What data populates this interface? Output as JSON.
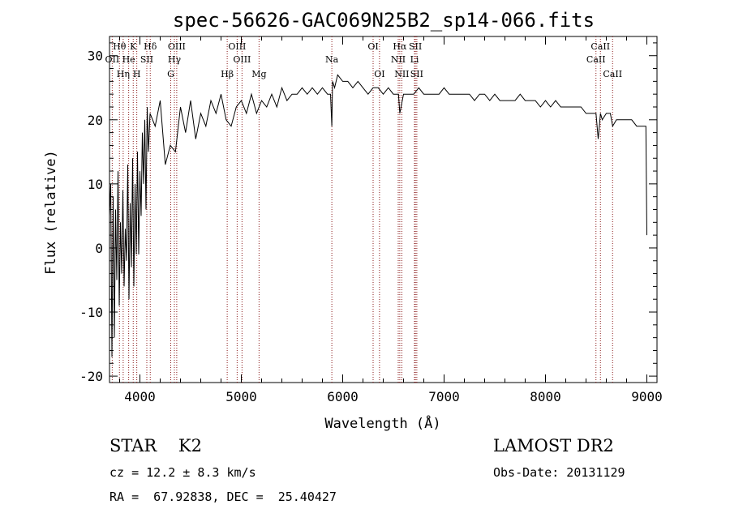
{
  "chart_data": {
    "type": "line",
    "title": "spec-56626-GAC069N25B2_sp14-066.fits",
    "xlabel": "Wavelength (Å)",
    "ylabel": "Flux (relative)",
    "xlim": [
      3700,
      9100
    ],
    "ylim": [
      -21,
      33
    ],
    "xticks": [
      4000,
      5000,
      6000,
      7000,
      8000,
      9000
    ],
    "yticks": [
      -20,
      -10,
      0,
      10,
      20,
      30
    ],
    "series": [
      {
        "x": [
          3700,
          3712,
          3724,
          3736,
          3748,
          3760,
          3772,
          3784,
          3796,
          3808,
          3820,
          3832,
          3844,
          3856,
          3868,
          3880,
          3892,
          3904,
          3916,
          3928,
          3940,
          3952,
          3964,
          3976,
          3988,
          4000,
          4012,
          4024,
          4036,
          4048,
          4060,
          4072,
          4084,
          4100,
          4150,
          4200,
          4250,
          4300,
          4350,
          4400,
          4450,
          4500,
          4550,
          4600,
          4650,
          4700,
          4750,
          4800,
          4850,
          4900,
          4950,
          5000,
          5050,
          5100,
          5150,
          5200,
          5250,
          5300,
          5350,
          5400,
          5450,
          5500,
          5550,
          5600,
          5650,
          5700,
          5750,
          5800,
          5850,
          5880,
          5893,
          5900,
          5920,
          5950,
          6000,
          6050,
          6100,
          6150,
          6200,
          6250,
          6300,
          6350,
          6400,
          6450,
          6500,
          6550,
          6563,
          6600,
          6650,
          6700,
          6750,
          6800,
          6850,
          6900,
          6950,
          7000,
          7050,
          7100,
          7150,
          7200,
          7250,
          7300,
          7350,
          7400,
          7450,
          7500,
          7550,
          7600,
          7650,
          7700,
          7750,
          7800,
          7850,
          7900,
          7950,
          8000,
          8050,
          8100,
          8150,
          8200,
          8250,
          8300,
          8350,
          8400,
          8450,
          8498,
          8520,
          8542,
          8560,
          8600,
          8640,
          8662,
          8700,
          8750,
          8800,
          8850,
          8900,
          8950,
          8990,
          9000
        ],
        "y": [
          5,
          10,
          -17,
          8,
          -14,
          6,
          -5,
          12,
          -9,
          4,
          -4,
          9,
          -6,
          3,
          -2,
          13,
          -8,
          7,
          -3,
          14,
          -6,
          10,
          -1,
          15,
          -1,
          12,
          5,
          18,
          10,
          20,
          6,
          22,
          15,
          21,
          19,
          23,
          13,
          16,
          15,
          22,
          18,
          23,
          17,
          21,
          19,
          23,
          21,
          24,
          20,
          19,
          22,
          23,
          21,
          24,
          21,
          23,
          22,
          24,
          22,
          25,
          23,
          24,
          24,
          25,
          24,
          25,
          24,
          25,
          24,
          24,
          19,
          26,
          25,
          27,
          26,
          26,
          25,
          26,
          25,
          24,
          25,
          25,
          24,
          25,
          24,
          24,
          21,
          24,
          24,
          24,
          25,
          24,
          24,
          24,
          24,
          25,
          24,
          24,
          24,
          24,
          24,
          23,
          24,
          24,
          23,
          24,
          23,
          23,
          23,
          23,
          24,
          23,
          23,
          23,
          22,
          23,
          22,
          23,
          22,
          22,
          22,
          22,
          22,
          21,
          21,
          21,
          17,
          21,
          20,
          21,
          21,
          19,
          20,
          20,
          20,
          20,
          19,
          19,
          19,
          2
        ]
      }
    ],
    "spectral_lines": [
      {
        "label": "Hθ",
        "wavelength": 3798,
        "row": 1
      },
      {
        "label": "K",
        "wavelength": 3934,
        "row": 1
      },
      {
        "label": "Hδ",
        "wavelength": 4102,
        "row": 1
      },
      {
        "label": "OIII",
        "wavelength": 4363,
        "row": 1
      },
      {
        "label": "OIII",
        "wavelength": 4959,
        "row": 1
      },
      {
        "label": "OI",
        "wavelength": 6300,
        "row": 1
      },
      {
        "label": "Hα",
        "wavelength": 6563,
        "row": 1
      },
      {
        "label": "SII",
        "wavelength": 6717,
        "row": 1
      },
      {
        "label": "CaII",
        "wavelength": 8542,
        "row": 1
      },
      {
        "label": "OII",
        "wavelength": 3727,
        "row": 2
      },
      {
        "label": "He",
        "wavelength": 3889,
        "row": 2
      },
      {
        "label": "SII",
        "wavelength": 4068,
        "row": 2
      },
      {
        "label": "Hγ",
        "wavelength": 4340,
        "row": 2
      },
      {
        "label": "OIII",
        "wavelength": 5007,
        "row": 2
      },
      {
        "label": "Na",
        "wavelength": 5893,
        "row": 2
      },
      {
        "label": "NII",
        "wavelength": 6548,
        "row": 2
      },
      {
        "label": "Li",
        "wavelength": 6708,
        "row": 2
      },
      {
        "label": "CaII",
        "wavelength": 8498,
        "row": 2
      },
      {
        "label": "Hη",
        "wavelength": 3835,
        "row": 3
      },
      {
        "label": "H",
        "wavelength": 3969,
        "row": 3
      },
      {
        "label": "G",
        "wavelength": 4304,
        "row": 3
      },
      {
        "label": "Hβ",
        "wavelength": 4861,
        "row": 3
      },
      {
        "label": "Mg",
        "wavelength": 5175,
        "row": 3
      },
      {
        "label": "OI",
        "wavelength": 6363,
        "row": 3
      },
      {
        "label": "NII",
        "wavelength": 6583,
        "row": 3
      },
      {
        "label": "SII",
        "wavelength": 6731,
        "row": 3
      },
      {
        "label": "CaII",
        "wavelength": 8662,
        "row": 3
      }
    ],
    "grid": false
  },
  "footer": {
    "object_class": "STAR    K2",
    "survey": "LAMOST DR2",
    "redshift": "cz = 12.2 ± 8.3 km/s",
    "obs_date": "Obs-Date: 20131129",
    "coords": "RA =  67.92838, DEC =  25.40427"
  }
}
